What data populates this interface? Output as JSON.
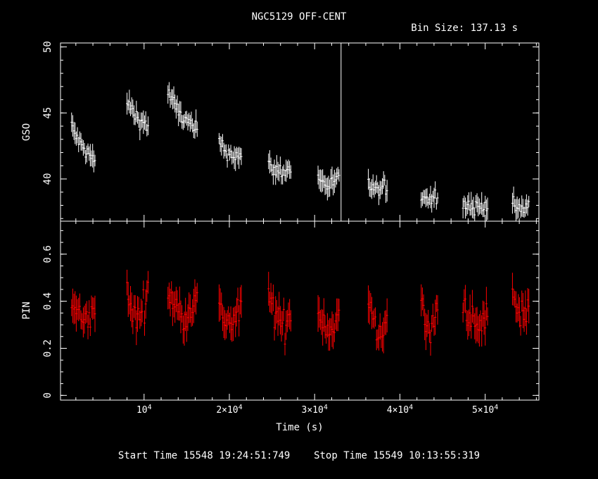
{
  "header": {
    "title": "NGC5129 OFF-CENT",
    "bin_size_text": "Bin Size: 137.13 s"
  },
  "footer": {
    "start_label": "Start Time",
    "start_value": "15548 19:24:51:749",
    "stop_label": "Stop Time",
    "stop_value": "15549 10:13:55:319"
  },
  "colors": {
    "background": "#000000",
    "axes": "#ffffff",
    "gso_series": "#ffffff",
    "pin_series": "#ff0000"
  },
  "chart_data": [
    {
      "type": "scatter",
      "panel": "top",
      "ylabel": "GSO",
      "xlabel": "Time (s)",
      "xlim": [
        200,
        56300
      ],
      "ylim": [
        36.8,
        50.3
      ],
      "yticks": [
        40,
        45,
        50
      ],
      "yticklabels": [
        "40",
        "45",
        "50"
      ],
      "grid": false,
      "series": [
        {
          "color": "#ffffff",
          "segments": [
            {
              "x0": 1500,
              "x1": 4300,
              "y": [
                44.0,
                43.0,
                42.3,
                41.8,
                41.2
              ]
            },
            {
              "x0": 8000,
              "x1": 10500,
              "y": [
                45.8,
                45.2,
                44.6,
                44.3,
                44.0
              ]
            },
            {
              "x0": 12800,
              "x1": 16300,
              "y": [
                46.5,
                45.5,
                44.6,
                44.1,
                43.6
              ]
            },
            {
              "x0": 18800,
              "x1": 21500,
              "y": [
                42.8,
                42.2,
                41.9,
                41.8,
                41.6
              ]
            },
            {
              "x0": 24600,
              "x1": 27300,
              "y": [
                41.0,
                40.7,
                40.6,
                40.6,
                40.8
              ]
            },
            {
              "x0": 30400,
              "x1": 32900,
              "y": [
                40.1,
                39.7,
                39.5,
                39.7,
                40.0
              ]
            },
            {
              "x0": 36300,
              "x1": 38500,
              "y": [
                39.6,
                39.3,
                39.1,
                39.2,
                39.4
              ]
            },
            {
              "x0": 42500,
              "x1": 44500,
              "y": [
                38.8,
                38.6,
                38.5,
                38.6,
                38.9
              ]
            },
            {
              "x0": 47400,
              "x1": 50400,
              "y": [
                38.2,
                38.0,
                37.8,
                38.0,
                38.2
              ]
            },
            {
              "x0": 53200,
              "x1": 55200,
              "y": [
                38.0,
                37.8,
                37.6,
                37.8,
                38.0
              ]
            }
          ]
        }
      ],
      "annotations": [
        {
          "type": "vertical-line",
          "x": 33100
        }
      ]
    },
    {
      "type": "scatter",
      "panel": "bottom",
      "ylabel": "PIN",
      "xlabel": "Time (s)",
      "xlim": [
        200,
        56300
      ],
      "ylim": [
        -0.02,
        0.74
      ],
      "yticks": [
        0,
        0.2,
        0.4,
        0.6
      ],
      "yticklabels": [
        "0",
        "0.2",
        "0.4",
        "0.6"
      ],
      "xticks": [
        10000,
        20000,
        30000,
        40000,
        50000
      ],
      "xticklabels": [
        "10^4",
        "2×10^4",
        "3×10^4",
        "4×10^4",
        "5×10^4"
      ],
      "grid": false,
      "series": [
        {
          "color": "#ff0000",
          "segments": [
            {
              "x0": 1500,
              "x1": 4300,
              "y": [
                0.38,
                0.36,
                0.3,
                0.34,
                0.38
              ]
            },
            {
              "x0": 8000,
              "x1": 10500,
              "y": [
                0.42,
                0.36,
                0.32,
                0.38,
                0.44
              ]
            },
            {
              "x0": 12800,
              "x1": 16300,
              "y": [
                0.44,
                0.38,
                0.33,
                0.38,
                0.42
              ]
            },
            {
              "x0": 18800,
              "x1": 21500,
              "y": [
                0.36,
                0.33,
                0.3,
                0.33,
                0.38
              ]
            },
            {
              "x0": 24600,
              "x1": 27300,
              "y": [
                0.42,
                0.36,
                0.3,
                0.3,
                0.36
              ]
            },
            {
              "x0": 30400,
              "x1": 32900,
              "y": [
                0.36,
                0.32,
                0.28,
                0.3,
                0.34
              ]
            },
            {
              "x0": 36300,
              "x1": 38500,
              "y": [
                0.4,
                0.32,
                0.24,
                0.28,
                0.36
              ]
            },
            {
              "x0": 42500,
              "x1": 44500,
              "y": [
                0.38,
                0.3,
                0.26,
                0.3,
                0.4
              ]
            },
            {
              "x0": 47400,
              "x1": 50400,
              "y": [
                0.4,
                0.34,
                0.28,
                0.3,
                0.36
              ]
            },
            {
              "x0": 53200,
              "x1": 55200,
              "y": [
                0.42,
                0.38,
                0.34,
                0.36,
                0.4
              ]
            }
          ]
        }
      ]
    }
  ]
}
